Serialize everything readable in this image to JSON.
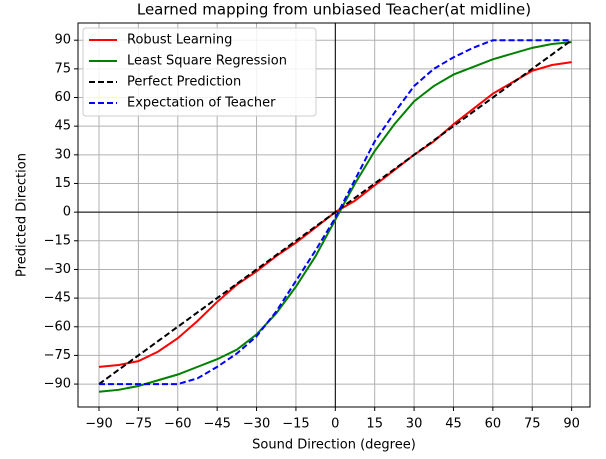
{
  "chart_data": {
    "type": "line",
    "title": "Learned mapping from unbiased Teacher(at midline)",
    "xlabel": "Sound Direction (degree)",
    "ylabel": "Predicted Direction",
    "x": [
      -90,
      -82.5,
      -75,
      -67.5,
      -60,
      -52.5,
      -45,
      -37.5,
      -30,
      -22.5,
      -15,
      -7.5,
      0,
      7.5,
      15,
      22.5,
      30,
      37.5,
      45,
      52.5,
      60,
      67.5,
      75,
      82.5,
      90
    ],
    "series": [
      {
        "name": "Robust Learning",
        "color": "#ff0000",
        "linestyle": "solid",
        "values": [
          -81,
          -80,
          -78,
          -73,
          -66,
          -57,
          -47,
          -38,
          -31,
          -23,
          -16,
          -8,
          0,
          6,
          14,
          22,
          30,
          37,
          46,
          54,
          62,
          68,
          74,
          77,
          78.5
        ]
      },
      {
        "name": "Least Square Regression",
        "color": "#008000",
        "linestyle": "solid",
        "values": [
          -94,
          -93,
          -91,
          -88,
          -85,
          -81,
          -77,
          -72,
          -64,
          -53,
          -39,
          -23,
          -4,
          15,
          32,
          46,
          58,
          66,
          72,
          76,
          80,
          83,
          86,
          88,
          89
        ]
      },
      {
        "name": "Perfect Prediction",
        "color": "#000000",
        "linestyle": "dashed",
        "values": [
          -90,
          -82.5,
          -75,
          -67.5,
          -60,
          -52.5,
          -45,
          -37.5,
          -30,
          -22.5,
          -15,
          -7.5,
          0,
          7.5,
          15,
          22.5,
          30,
          37.5,
          45,
          52.5,
          60,
          67.5,
          75,
          82.5,
          90
        ]
      },
      {
        "name": "Expectation of Teacher",
        "color": "#0000ff",
        "linestyle": "dashed",
        "values": [
          -90,
          -90,
          -90,
          -90,
          -90,
          -87,
          -81,
          -74,
          -65,
          -52,
          -36,
          -20,
          -3,
          17,
          37,
          52,
          66,
          75,
          81,
          86,
          90,
          90,
          90,
          90,
          90
        ]
      }
    ],
    "xlim": [
      -98,
      97
    ],
    "ylim": [
      -102,
      99
    ],
    "xticks": [
      {
        "value": -90,
        "label": "−90"
      },
      {
        "value": -75,
        "label": "−75"
      },
      {
        "value": -60,
        "label": "−60"
      },
      {
        "value": -45,
        "label": "−45"
      },
      {
        "value": -30,
        "label": "−30"
      },
      {
        "value": -15,
        "label": "−15"
      },
      0,
      15,
      30,
      45,
      60,
      75,
      90
    ],
    "yticks": [
      {
        "value": -90,
        "label": "−90"
      },
      {
        "value": -75,
        "label": "−75"
      },
      {
        "value": -60,
        "label": "−60"
      },
      {
        "value": -45,
        "label": "−45"
      },
      {
        "value": -30,
        "label": "−30"
      },
      {
        "value": -15,
        "label": "−15"
      },
      0,
      15,
      30,
      45,
      60,
      75,
      90
    ],
    "grid": true,
    "legend": "upper left"
  }
}
